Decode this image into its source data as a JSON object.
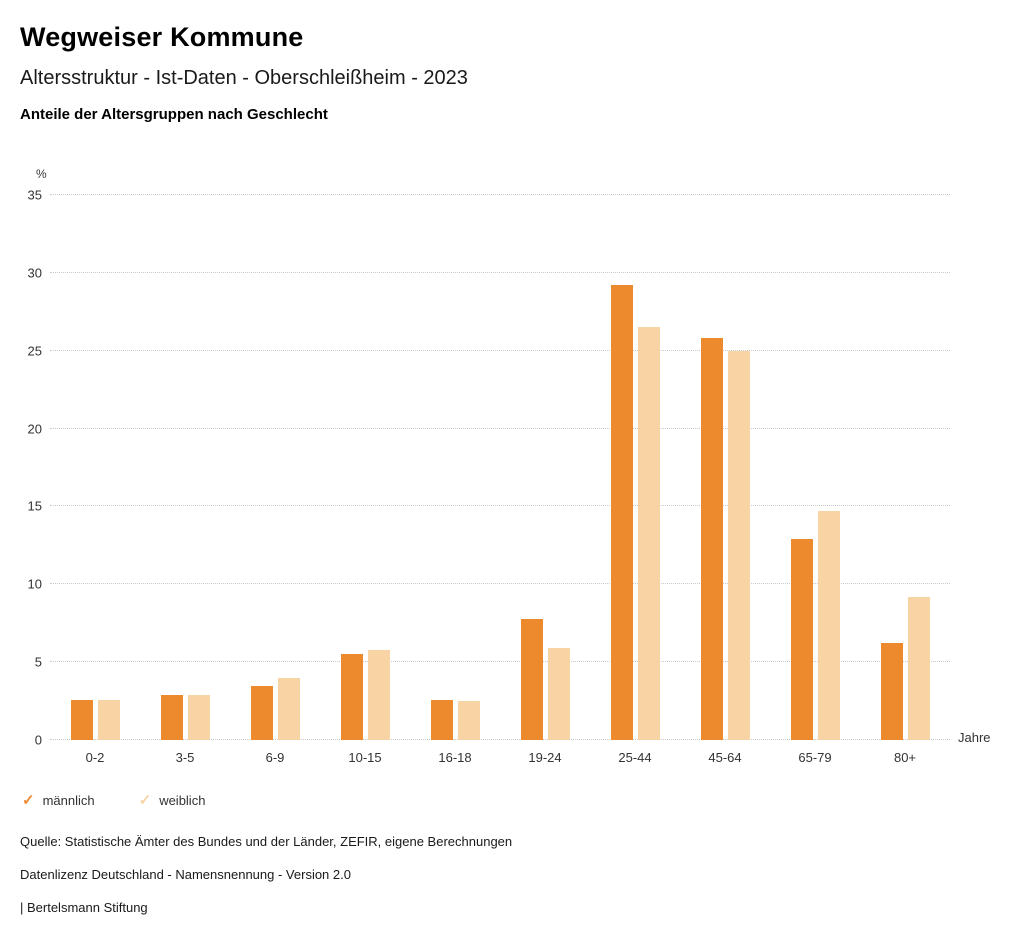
{
  "header": {
    "title": "Wegweiser Kommune",
    "subtitle": "Altersstruktur - Ist-Daten - Oberschleißheim - 2023",
    "description": "Anteile der Altersgruppen nach Geschlecht"
  },
  "chart_data": {
    "type": "bar",
    "title": "Anteile der Altersgruppen nach Geschlecht",
    "categories": [
      "0-2",
      "3-5",
      "6-9",
      "10-15",
      "16-18",
      "19-24",
      "25-44",
      "45-64",
      "65-79",
      "80+"
    ],
    "series": [
      {
        "name": "männlich",
        "color": "#ee8a2e",
        "values": [
          2.6,
          2.9,
          3.5,
          5.5,
          2.6,
          7.8,
          29.2,
          25.8,
          12.9,
          6.2
        ]
      },
      {
        "name": "weiblich",
        "color": "#f8d3a4",
        "values": [
          2.6,
          2.9,
          4.0,
          5.8,
          2.5,
          5.9,
          26.5,
          25.0,
          14.7,
          9.2
        ]
      }
    ],
    "ylabel": "%",
    "xlabel": "Jahre",
    "ylim": [
      0,
      35
    ],
    "yticks": [
      0,
      5,
      10,
      15,
      20,
      25,
      30,
      35
    ],
    "grid": "horizontal dotted",
    "legend_position": "bottom-left"
  },
  "legend": {
    "items": [
      {
        "label": "männlich",
        "color": "#ee8a2e"
      },
      {
        "label": "weiblich",
        "color": "#f8d3a4"
      }
    ]
  },
  "footer": {
    "source": "Quelle: Statistische Ämter des Bundes und der Länder, ZEFIR, eigene Berechnungen",
    "license": "Datenlizenz Deutschland - Namensnennung - Version 2.0",
    "attribution": "| Bertelsmann Stiftung"
  }
}
